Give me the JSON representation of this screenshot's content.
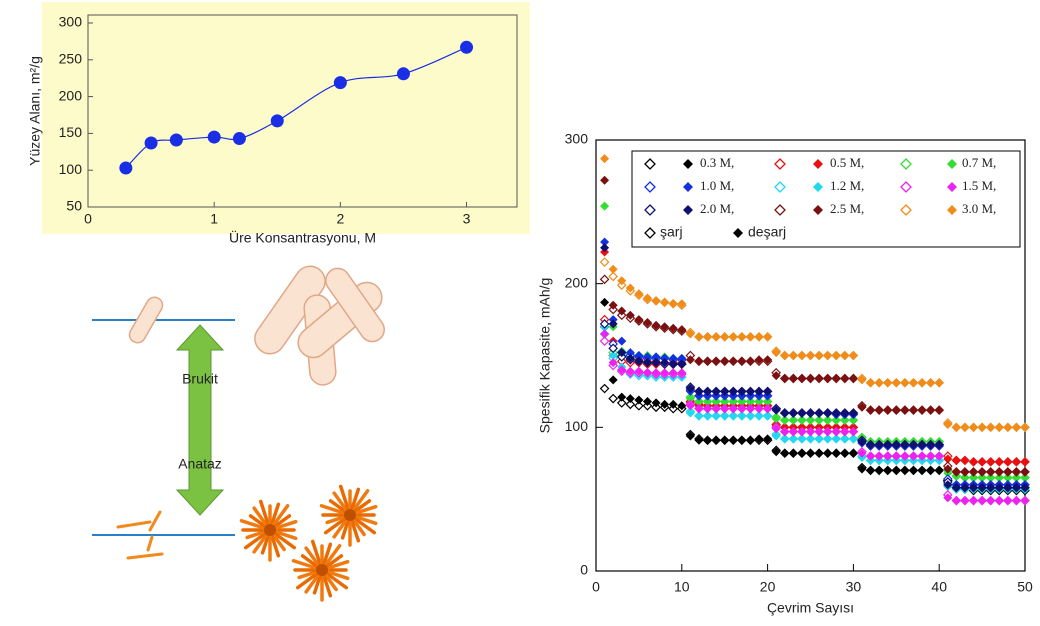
{
  "chart_data": [
    {
      "type": "line",
      "x_label": "Üre Konsantrasyonu, M",
      "y_label": "Yüzey Alanı, m²/g",
      "x": [
        0.3,
        0.5,
        0.7,
        1.0,
        1.2,
        1.5,
        2.0,
        2.5,
        3.0
      ],
      "values": [
        103,
        137,
        141,
        145,
        143,
        167,
        219,
        231,
        267
      ],
      "color": "#1a2ee6",
      "background": "#fdfbc9",
      "xlim": [
        0,
        3.4
      ],
      "xticks": [
        0,
        1,
        2,
        3
      ],
      "ylim": [
        50,
        300
      ],
      "yticks": [
        50,
        100,
        150,
        200,
        250,
        300
      ]
    },
    {
      "type": "scatter",
      "x_label": "Çevrim Sayısı",
      "y_label": "Spesifik Kapasite, mAh/g",
      "legend_markers": {
        "charge": "şarj",
        "discharge": "deşarj"
      },
      "x": [
        1,
        2,
        3,
        4,
        5,
        6,
        7,
        8,
        9,
        10,
        11,
        12,
        13,
        14,
        15,
        16,
        17,
        18,
        19,
        20,
        21,
        22,
        23,
        24,
        25,
        26,
        27,
        28,
        29,
        30,
        31,
        32,
        33,
        34,
        35,
        36,
        37,
        38,
        39,
        40,
        41,
        42,
        43,
        44,
        45,
        46,
        47,
        48,
        49,
        50
      ],
      "xlim": [
        0,
        50
      ],
      "xticks": [
        0,
        10,
        20,
        30,
        40,
        50
      ],
      "ylim": [
        0,
        300
      ],
      "yticks": [
        0,
        100,
        200,
        300
      ],
      "series": [
        {
          "name": "0.3 M,",
          "color": "#000000",
          "charge": [
            127,
            120,
            117,
            116,
            115,
            115,
            114,
            114,
            113,
            113,
            95,
            92,
            91,
            91,
            91,
            91,
            91,
            91,
            91,
            91,
            84,
            82,
            82,
            82,
            82,
            82,
            82,
            82,
            82,
            82,
            72,
            70,
            70,
            70,
            70,
            70,
            70,
            70,
            70,
            70,
            63,
            58,
            57,
            56,
            56,
            56,
            56,
            56,
            56,
            56
          ],
          "discharge": [
            187,
            133,
            121,
            120,
            119,
            118,
            117,
            116,
            116,
            115,
            94,
            91,
            91,
            91,
            91,
            91,
            91,
            91,
            92,
            92,
            83,
            82,
            82,
            82,
            82,
            82,
            82,
            82,
            82,
            82,
            71,
            70,
            70,
            70,
            70,
            70,
            70,
            70,
            70,
            70,
            59,
            57,
            57,
            56,
            56,
            56,
            56,
            56,
            56,
            56
          ]
        },
        {
          "name": "0.5 M,",
          "color": "#e81010",
          "charge": [
            175,
            150,
            146,
            145,
            145,
            144,
            144,
            144,
            144,
            144,
            118,
            116,
            115,
            115,
            115,
            115,
            115,
            115,
            115,
            115,
            102,
            100,
            100,
            100,
            100,
            100,
            100,
            100,
            100,
            100,
            91,
            88,
            88,
            88,
            88,
            88,
            88,
            88,
            88,
            88,
            80,
            77,
            77,
            76,
            76,
            76,
            76,
            76,
            76,
            76
          ],
          "discharge": [
            222,
            160,
            150,
            148,
            147,
            146,
            146,
            145,
            145,
            145,
            117,
            115,
            115,
            115,
            115,
            115,
            115,
            115,
            115,
            115,
            101,
            100,
            100,
            100,
            100,
            100,
            100,
            100,
            100,
            100,
            90,
            88,
            88,
            88,
            88,
            88,
            88,
            88,
            88,
            88,
            78,
            77,
            77,
            76,
            76,
            76,
            76,
            76,
            76,
            76
          ]
        },
        {
          "name": "0.7 M,",
          "color": "#33dd33",
          "charge": [
            165,
            152,
            150,
            149,
            149,
            148,
            148,
            148,
            147,
            147,
            121,
            118,
            118,
            118,
            118,
            118,
            118,
            118,
            118,
            118,
            107,
            105,
            105,
            105,
            105,
            105,
            105,
            105,
            105,
            105,
            93,
            90,
            90,
            90,
            90,
            90,
            90,
            90,
            90,
            90,
            70,
            66,
            65,
            65,
            65,
            65,
            65,
            65,
            65,
            65
          ],
          "discharge": [
            254,
            170,
            153,
            151,
            150,
            150,
            149,
            149,
            148,
            148,
            120,
            118,
            118,
            118,
            118,
            118,
            118,
            118,
            118,
            118,
            106,
            105,
            105,
            105,
            105,
            105,
            105,
            105,
            105,
            105,
            92,
            90,
            90,
            90,
            90,
            90,
            90,
            90,
            90,
            90,
            68,
            66,
            65,
            65,
            65,
            65,
            65,
            65,
            65,
            65
          ]
        },
        {
          "name": "1.0 M,",
          "color": "#1530e0",
          "charge": [
            170,
            158,
            152,
            150,
            149,
            148,
            148,
            148,
            147,
            147,
            126,
            122,
            122,
            122,
            122,
            122,
            122,
            122,
            122,
            122,
            113,
            110,
            110,
            110,
            110,
            110,
            110,
            109,
            109,
            109,
            90,
            87,
            87,
            87,
            87,
            87,
            87,
            87,
            87,
            87,
            64,
            60,
            60,
            60,
            60,
            60,
            60,
            60,
            60,
            60
          ],
          "discharge": [
            229,
            175,
            160,
            152,
            150,
            149,
            149,
            148,
            148,
            148,
            125,
            122,
            122,
            122,
            122,
            122,
            122,
            122,
            122,
            122,
            112,
            110,
            110,
            110,
            110,
            110,
            110,
            109,
            109,
            109,
            89,
            87,
            87,
            87,
            87,
            87,
            87,
            87,
            87,
            87,
            62,
            60,
            60,
            60,
            60,
            60,
            60,
            60,
            60,
            60
          ]
        },
        {
          "name": "1.2 M,",
          "color": "#22d8ee",
          "charge": [
            165,
            148,
            140,
            137,
            136,
            136,
            135,
            135,
            135,
            135,
            111,
            108,
            108,
            108,
            108,
            108,
            108,
            108,
            108,
            108,
            95,
            92,
            92,
            92,
            92,
            92,
            92,
            92,
            92,
            92,
            80,
            77,
            77,
            77,
            77,
            77,
            77,
            77,
            77,
            77,
            61,
            57,
            57,
            57,
            57,
            57,
            57,
            57,
            57,
            57
          ],
          "discharge": [
            170,
            150,
            142,
            138,
            137,
            136,
            136,
            135,
            135,
            135,
            110,
            108,
            108,
            108,
            108,
            108,
            108,
            108,
            108,
            108,
            94,
            92,
            92,
            92,
            92,
            92,
            92,
            92,
            92,
            92,
            79,
            77,
            77,
            77,
            77,
            77,
            77,
            77,
            77,
            77,
            59,
            57,
            57,
            57,
            57,
            57,
            57,
            57,
            57,
            57
          ]
        },
        {
          "name": "1.5 M,",
          "color": "#ee22ee",
          "charge": [
            160,
            143,
            139,
            138,
            138,
            138,
            137,
            137,
            137,
            137,
            116,
            113,
            113,
            113,
            113,
            113,
            113,
            113,
            113,
            113,
            100,
            97,
            97,
            97,
            97,
            97,
            97,
            97,
            97,
            97,
            83,
            80,
            80,
            80,
            80,
            80,
            80,
            80,
            80,
            80,
            53,
            49,
            49,
            49,
            49,
            49,
            49,
            49,
            49,
            49
          ],
          "discharge": [
            165,
            145,
            140,
            139,
            139,
            138,
            138,
            138,
            138,
            138,
            115,
            113,
            113,
            113,
            113,
            113,
            113,
            113,
            113,
            113,
            99,
            97,
            97,
            97,
            97,
            97,
            97,
            97,
            97,
            97,
            82,
            80,
            80,
            80,
            80,
            80,
            80,
            80,
            80,
            80,
            51,
            49,
            49,
            49,
            49,
            49,
            49,
            49,
            49,
            49
          ]
        },
        {
          "name": "2.0 M,",
          "color": "#101070",
          "charge": [
            172,
            155,
            149,
            147,
            146,
            145,
            145,
            144,
            144,
            144,
            128,
            125,
            125,
            125,
            125,
            125,
            125,
            125,
            125,
            125,
            113,
            110,
            110,
            110,
            110,
            110,
            110,
            110,
            110,
            110,
            91,
            88,
            88,
            88,
            88,
            88,
            88,
            88,
            88,
            88,
            62,
            58,
            58,
            58,
            58,
            58,
            58,
            58,
            58,
            58
          ],
          "discharge": [
            225,
            172,
            152,
            148,
            146,
            145,
            145,
            145,
            144,
            144,
            127,
            125,
            125,
            125,
            125,
            125,
            125,
            125,
            125,
            125,
            112,
            110,
            110,
            110,
            110,
            110,
            110,
            110,
            110,
            110,
            90,
            88,
            88,
            88,
            88,
            88,
            88,
            88,
            88,
            88,
            60,
            58,
            58,
            58,
            58,
            58,
            58,
            58,
            58,
            58
          ]
        },
        {
          "name": "2.5 M,",
          "color": "#7a1010",
          "charge": [
            203,
            182,
            178,
            176,
            174,
            172,
            170,
            169,
            168,
            167,
            150,
            146,
            146,
            146,
            146,
            146,
            146,
            146,
            146,
            146,
            138,
            134,
            134,
            134,
            134,
            134,
            134,
            134,
            134,
            134,
            115,
            112,
            112,
            112,
            112,
            112,
            112,
            112,
            112,
            112,
            73,
            69,
            69,
            69,
            69,
            69,
            69,
            69,
            69,
            69
          ],
          "discharge": [
            272,
            185,
            181,
            178,
            175,
            173,
            171,
            170,
            169,
            168,
            147,
            146,
            146,
            146,
            146,
            146,
            146,
            146,
            147,
            147,
            136,
            134,
            134,
            134,
            134,
            134,
            134,
            134,
            134,
            134,
            114,
            112,
            112,
            112,
            112,
            112,
            112,
            112,
            112,
            112,
            71,
            69,
            69,
            69,
            69,
            69,
            69,
            69,
            69,
            69
          ]
        },
        {
          "name": "3.0 M,",
          "color": "#f08c1a",
          "charge": [
            215,
            205,
            199,
            195,
            192,
            189,
            188,
            187,
            186,
            185,
            166,
            163,
            163,
            163,
            163,
            163,
            163,
            163,
            163,
            163,
            153,
            150,
            150,
            150,
            150,
            150,
            150,
            150,
            150,
            150,
            134,
            131,
            131,
            131,
            131,
            131,
            131,
            131,
            131,
            131,
            103,
            100,
            100,
            100,
            100,
            100,
            100,
            100,
            100,
            100
          ],
          "discharge": [
            287,
            210,
            202,
            197,
            193,
            190,
            188,
            187,
            186,
            186,
            165,
            163,
            163,
            163,
            163,
            163,
            163,
            163,
            163,
            163,
            152,
            150,
            150,
            150,
            150,
            150,
            150,
            150,
            150,
            150,
            133,
            131,
            131,
            131,
            131,
            131,
            131,
            131,
            131,
            131,
            102,
            100,
            100,
            100,
            100,
            100,
            100,
            100,
            100,
            100
          ]
        }
      ]
    }
  ],
  "diagram": {
    "labels": [
      "Brukit",
      "Anataz"
    ]
  }
}
